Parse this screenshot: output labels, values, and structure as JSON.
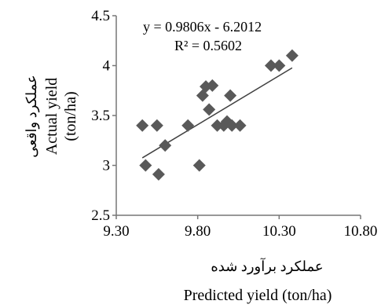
{
  "chart_data": {
    "type": "scatter",
    "title": "",
    "xlabel_fa": "عملکرد برآورد شده",
    "xlabel_en": "Predicted yield  (ton/ha)",
    "ylabel_fa": "عملکرد واقعی",
    "ylabel_en_1": "Actual  yield",
    "ylabel_en_2": "(ton/ha)",
    "xlim": [
      9.3,
      10.8
    ],
    "ylim": [
      2.5,
      4.5
    ],
    "xticks": [
      9.3,
      9.8,
      10.3,
      10.8
    ],
    "xtick_labels": [
      "9.30",
      "9.80",
      "10.30",
      "10.80"
    ],
    "yticks": [
      2.5,
      3,
      3.5,
      4,
      4.5
    ],
    "ytick_labels": [
      "2.5",
      "3",
      "3.5",
      "4",
      "4.5"
    ],
    "grid": false,
    "legend": "none",
    "marker": "diamond",
    "marker_color": "#595959",
    "series": [
      {
        "points": [
          {
            "x": 9.46,
            "y": 3.4
          },
          {
            "x": 9.55,
            "y": 3.4
          },
          {
            "x": 9.48,
            "y": 3.0
          },
          {
            "x": 9.56,
            "y": 2.91
          },
          {
            "x": 9.6,
            "y": 3.2
          },
          {
            "x": 9.74,
            "y": 3.4
          },
          {
            "x": 9.81,
            "y": 3.0
          },
          {
            "x": 9.83,
            "y": 3.7
          },
          {
            "x": 9.85,
            "y": 3.79
          },
          {
            "x": 9.89,
            "y": 3.8
          },
          {
            "x": 9.87,
            "y": 3.56
          },
          {
            "x": 9.92,
            "y": 3.4
          },
          {
            "x": 9.96,
            "y": 3.4
          },
          {
            "x": 9.98,
            "y": 3.44
          },
          {
            "x": 10.0,
            "y": 3.7
          },
          {
            "x": 10.01,
            "y": 3.4
          },
          {
            "x": 10.06,
            "y": 3.4
          },
          {
            "x": 10.25,
            "y": 4.0
          },
          {
            "x": 10.3,
            "y": 4.0
          },
          {
            "x": 10.38,
            "y": 4.1
          }
        ]
      }
    ],
    "trendline": {
      "slope": 0.9806,
      "intercept": -6.2012,
      "x_range": [
        9.46,
        10.38
      ],
      "color": "#404040"
    },
    "equation_text": "y = 0.9806x  - 6.2012",
    "r2_text": "R² = 0.5602"
  }
}
